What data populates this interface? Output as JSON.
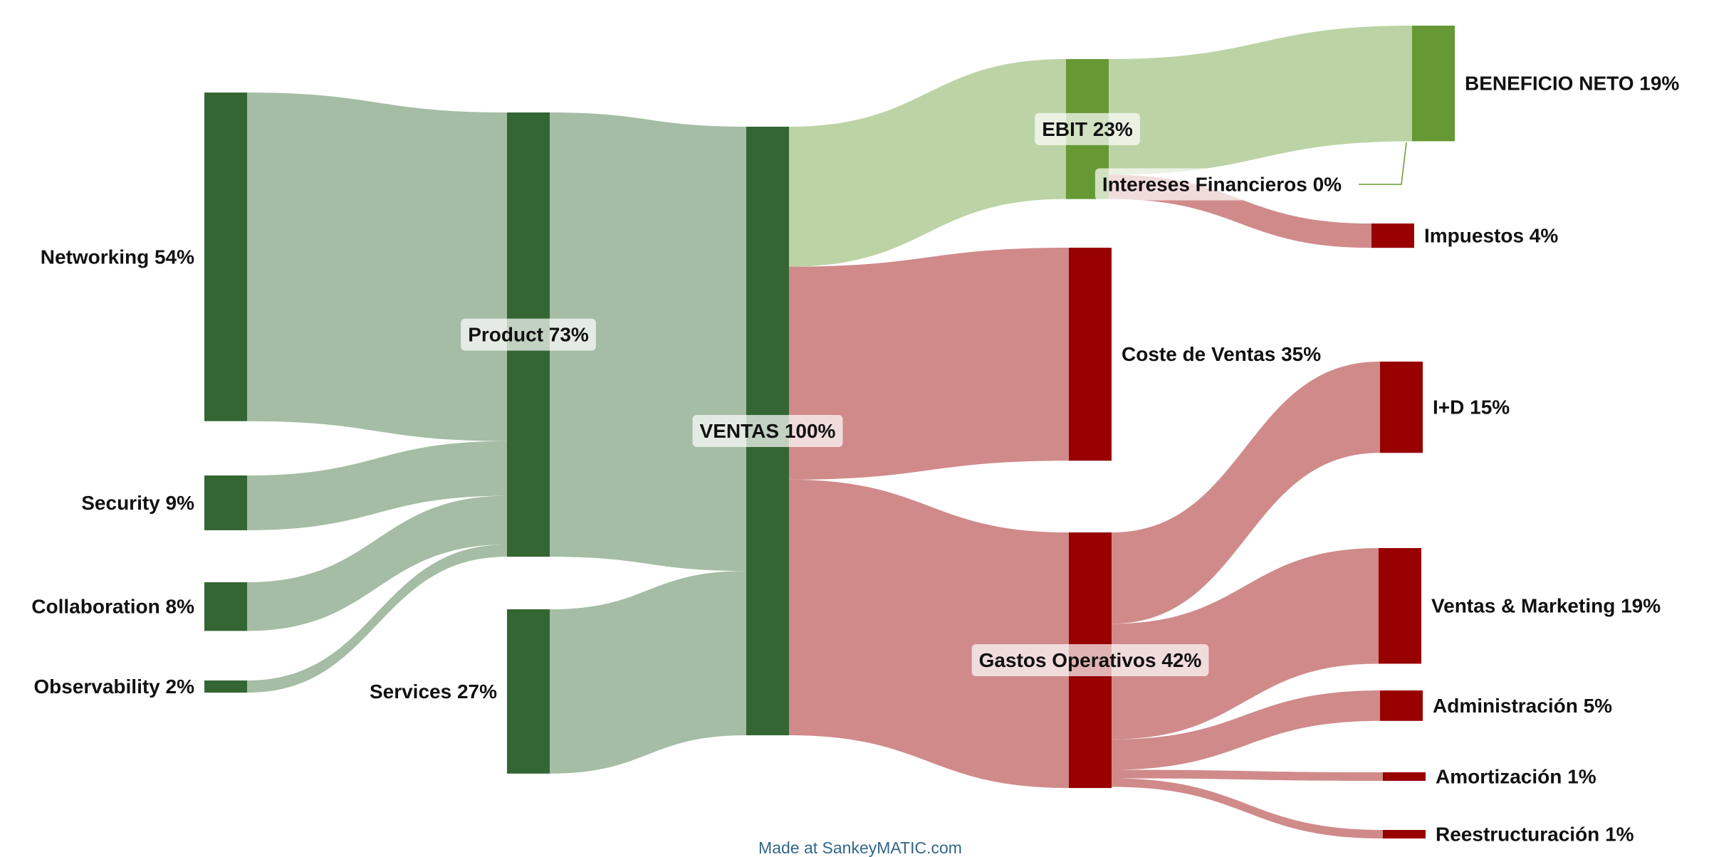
{
  "chart_data": {
    "type": "sankey",
    "units": "%",
    "colors": {
      "green_node": "#336633",
      "green_flow": "#a4bda4",
      "light_green_node": "#669933",
      "light_green_flow": "#bcd3a6",
      "red_node": "#990000",
      "red_flow": "#d08a8a"
    },
    "nodes": [
      {
        "id": "networking",
        "label": "Networking 54%",
        "value": 54,
        "color": "green"
      },
      {
        "id": "security",
        "label": "Security 9%",
        "value": 9,
        "color": "green"
      },
      {
        "id": "collaboration",
        "label": "Collaboration 8%",
        "value": 8,
        "color": "green"
      },
      {
        "id": "observability",
        "label": "Observability 2%",
        "value": 2,
        "color": "green"
      },
      {
        "id": "product",
        "label": "Product 73%",
        "value": 73,
        "color": "green"
      },
      {
        "id": "services",
        "label": "Services 27%",
        "value": 27,
        "color": "green"
      },
      {
        "id": "ventas",
        "label": "VENTAS 100%",
        "value": 100,
        "color": "green"
      },
      {
        "id": "ebit",
        "label": "EBIT 23%",
        "value": 23,
        "color": "light_green"
      },
      {
        "id": "coste",
        "label": "Coste de Ventas 35%",
        "value": 35,
        "color": "red"
      },
      {
        "id": "gastos",
        "label": "Gastos Operativos 42%",
        "value": 42,
        "color": "red"
      },
      {
        "id": "beneficio",
        "label": "BENEFICIO NETO 19%",
        "value": 19,
        "color": "light_green"
      },
      {
        "id": "intereses",
        "label": "Intereses Financieros 0%",
        "value": 0,
        "color": "light_green"
      },
      {
        "id": "impuestos",
        "label": "Impuestos 4%",
        "value": 4,
        "color": "red"
      },
      {
        "id": "id",
        "label": "I+D 15%",
        "value": 15,
        "color": "red"
      },
      {
        "id": "vm",
        "label": "Ventas & Marketing 19%",
        "value": 19,
        "color": "red"
      },
      {
        "id": "admin",
        "label": "Administración 5%",
        "value": 5,
        "color": "red"
      },
      {
        "id": "amort",
        "label": "Amortización 1%",
        "value": 1,
        "color": "red"
      },
      {
        "id": "restr",
        "label": "Reestructuración 1%",
        "value": 1,
        "color": "red"
      }
    ],
    "links": [
      {
        "source": "networking",
        "target": "product",
        "value": 54
      },
      {
        "source": "security",
        "target": "product",
        "value": 9
      },
      {
        "source": "collaboration",
        "target": "product",
        "value": 8
      },
      {
        "source": "observability",
        "target": "product",
        "value": 2
      },
      {
        "source": "product",
        "target": "ventas",
        "value": 73
      },
      {
        "source": "services",
        "target": "ventas",
        "value": 27
      },
      {
        "source": "ventas",
        "target": "ebit",
        "value": 23
      },
      {
        "source": "ventas",
        "target": "coste",
        "value": 35
      },
      {
        "source": "ventas",
        "target": "gastos",
        "value": 42
      },
      {
        "source": "ebit",
        "target": "beneficio",
        "value": 19
      },
      {
        "source": "ebit",
        "target": "intereses",
        "value": 0
      },
      {
        "source": "ebit",
        "target": "impuestos",
        "value": 4
      },
      {
        "source": "gastos",
        "target": "id",
        "value": 15
      },
      {
        "source": "gastos",
        "target": "vm",
        "value": 19
      },
      {
        "source": "gastos",
        "target": "admin",
        "value": 5
      },
      {
        "source": "gastos",
        "target": "amort",
        "value": 1
      },
      {
        "source": "gastos",
        "target": "restr",
        "value": 1
      }
    ]
  },
  "credit": "Made at SankeyMATIC.com"
}
